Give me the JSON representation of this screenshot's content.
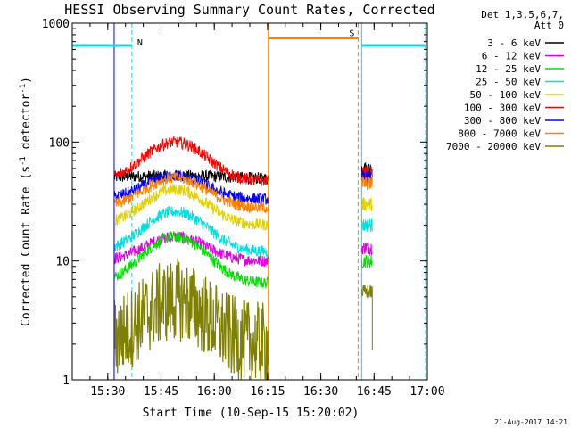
{
  "chart_data": {
    "type": "line",
    "title": "HESSI Observing Summary Count Rates, Corrected",
    "xlabel": "Start Time (10-Sep-15 15:20:02)",
    "ylabel_main": "Corrected Count Rate (s",
    "ylabel_sup1": "-1",
    "ylabel_mid": " detector",
    "ylabel_sup2": "-1",
    "ylabel_end": ")",
    "yscale": "log",
    "ylim": [
      1,
      1000
    ],
    "xlim_minutes": [
      0,
      100
    ],
    "x_unit": "minutes after 15:20:02",
    "y_ticks": [
      {
        "value": 1,
        "label": "1"
      },
      {
        "value": 10,
        "label": "10"
      },
      {
        "value": 100,
        "label": "100"
      },
      {
        "value": 1000,
        "label": "1000"
      }
    ],
    "x_ticks": [
      {
        "value": 10,
        "label": "15:30"
      },
      {
        "value": 25,
        "label": "15:45"
      },
      {
        "value": 40,
        "label": "16:00"
      },
      {
        "value": 55,
        "label": "16:15"
      },
      {
        "value": 70,
        "label": "16:30"
      },
      {
        "value": 85,
        "label": "16:45"
      },
      {
        "value": 100,
        "label": "17:00"
      }
    ],
    "legend_header": [
      "Det 1,3,5,6,7,",
      "Att 0"
    ],
    "legend_placement": "right",
    "series": [
      {
        "name": "3 - 6 keV",
        "color": "#000000",
        "pre": 47,
        "peak": 52,
        "width": 30
      },
      {
        "name": "6 - 12 keV",
        "color": "#e000e0",
        "pre": 10,
        "peak": 16,
        "width": 11
      },
      {
        "name": "12 - 25 keV",
        "color": "#00e000",
        "pre": 6.5,
        "peak": 16,
        "width": 11
      },
      {
        "name": "25 - 50 keV",
        "color": "#00e0e0",
        "pre": 12,
        "peak": 26,
        "width": 11
      },
      {
        "name": "50 - 100 keV",
        "color": "#e0d000",
        "pre": 20,
        "peak": 40,
        "width": 11
      },
      {
        "name": "100 - 300 keV",
        "color": "#ff0000",
        "pre": 47,
        "peak": 100,
        "width": 11
      },
      {
        "name": "300 - 800 keV",
        "color": "#0000ff",
        "pre": 33,
        "peak": 52,
        "width": 11
      },
      {
        "name": "800 - 7000 keV",
        "color": "#ff8000",
        "pre": 28,
        "peak": 50,
        "width": 11
      },
      {
        "name": "7000 - 20000 keV",
        "color": "#808000",
        "pre": 2,
        "peak": 4.7,
        "width": 11
      }
    ],
    "data_window_minutes": [
      11.8,
      55.2
    ],
    "second_window_minutes": [
      81.5,
      84.5
    ],
    "second_window_values": [
      60,
      13,
      10,
      20,
      30,
      55,
      50,
      45,
      5.5
    ],
    "peak_minute": 29,
    "attenuator_markers": [
      {
        "label": "N",
        "start": 0,
        "end": 16.8,
        "level": 650,
        "color": "#00e0e0"
      },
      {
        "label": "S",
        "start": 55.2,
        "end": 80.5,
        "level": 750,
        "color": "#ff8000"
      },
      {
        "label": "",
        "start": 81.5,
        "end": 99.5,
        "level": 650,
        "color": "#00e0e0"
      }
    ],
    "vertical_lines": [
      {
        "x": 0,
        "color": "#00e0e0",
        "dashed": false
      },
      {
        "x": 11.8,
        "color": "#0000ff",
        "dashed": false
      },
      {
        "x": 16.8,
        "color": "#00e0e0",
        "dashed": true
      },
      {
        "x": 55.2,
        "color": "#ff8000",
        "dashed": false
      },
      {
        "x": 80.5,
        "color": "#ff8000",
        "dashed": true
      },
      {
        "x": 81.5,
        "color": "#00e0e0",
        "dashed": false
      },
      {
        "x": 99.5,
        "color": "#00e0e0",
        "dashed": true
      }
    ]
  },
  "footer_date": "21-Aug-2017 14:21"
}
